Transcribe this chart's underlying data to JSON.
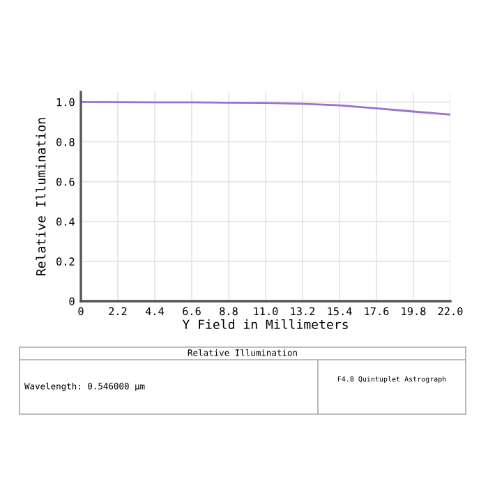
{
  "chart_data": {
    "type": "line",
    "title": "Relative Illumination",
    "xlabel": "Y Field in Millimeters",
    "ylabel": "Relative Illumination",
    "x": [
      0,
      2.2,
      4.4,
      6.6,
      8.8,
      11.0,
      13.2,
      15.4,
      17.6,
      19.8,
      22.0
    ],
    "series": [
      {
        "color": "#a070d0",
        "values": [
          1.0,
          0.999,
          0.998,
          0.998,
          0.996,
          0.995,
          0.991,
          0.983,
          0.968,
          0.952,
          0.937
        ]
      }
    ],
    "xlim": [
      0,
      22.0
    ],
    "ylim": [
      0,
      1.05
    ],
    "xticks": [
      0,
      2.2,
      4.4,
      6.6,
      8.8,
      {
        "value": 11.0,
        "label": "11.0"
      },
      13.2,
      15.4,
      17.6,
      19.8,
      {
        "value": 22.0,
        "label": "22.0"
      }
    ],
    "yticks": [
      0,
      0.2,
      0.4,
      0.6,
      0.8,
      {
        "value": 1.0,
        "label": "1.0"
      }
    ],
    "grid": true,
    "annotations": [
      "Wavelength: 0.546000 µm",
      "F4.8 Quintuplet Astrograph"
    ]
  }
}
